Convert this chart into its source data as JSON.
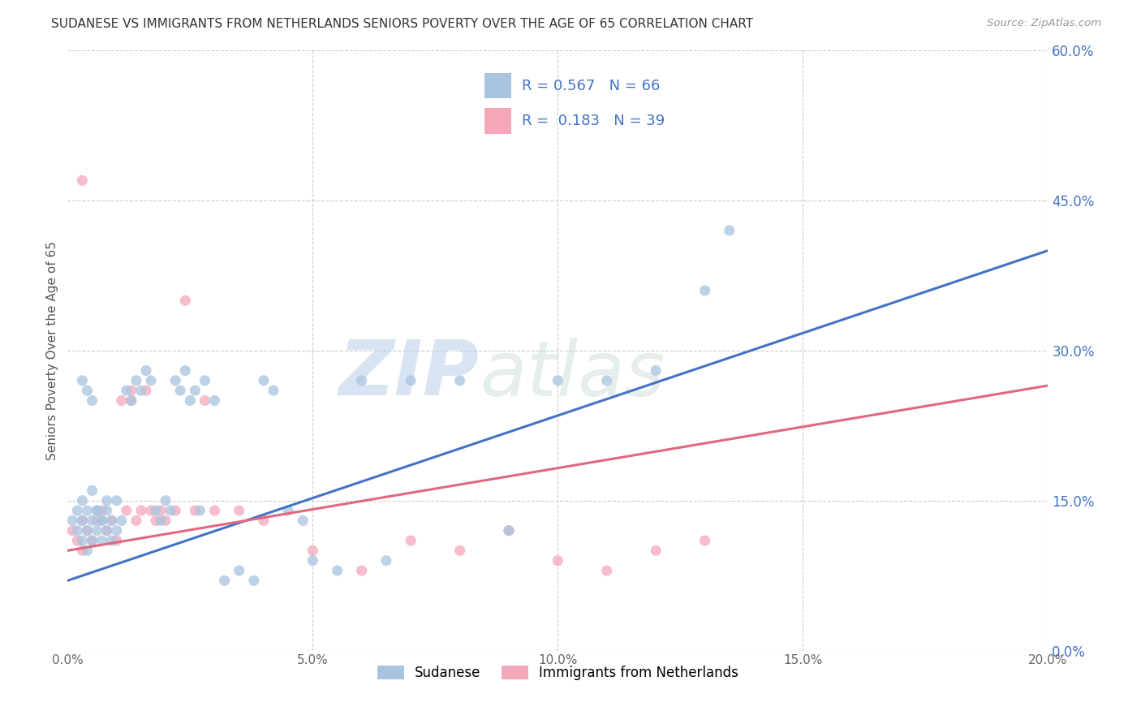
{
  "title": "SUDANESE VS IMMIGRANTS FROM NETHERLANDS SENIORS POVERTY OVER THE AGE OF 65 CORRELATION CHART",
  "source": "Source: ZipAtlas.com",
  "ylabel": "Seniors Poverty Over the Age of 65",
  "xlabel_ticks": [
    "0.0%",
    "5.0%",
    "10.0%",
    "15.0%",
    "20.0%"
  ],
  "ylabel_ticks_right": [
    "60.0%",
    "45.0%",
    "30.0%",
    "15.0%",
    "0.0%"
  ],
  "ylabel_ticks_right_vals": [
    0.6,
    0.45,
    0.3,
    0.15,
    0.0
  ],
  "xlim": [
    0.0,
    0.2
  ],
  "ylim": [
    0.0,
    0.6
  ],
  "legend1_label": "Sudanese",
  "legend2_label": "Immigrants from Netherlands",
  "R1": "0.567",
  "N1": "66",
  "R2": "0.183",
  "N2": "39",
  "color1": "#a8c4e0",
  "color2": "#f4a7b9",
  "line_color1": "#4472c4",
  "line_color2": "#e06880",
  "blue_line_y0": 0.07,
  "blue_line_y1": 0.4,
  "pink_line_y0": 0.1,
  "pink_line_y1": 0.265,
  "sudanese_x": [
    0.001,
    0.002,
    0.002,
    0.003,
    0.003,
    0.003,
    0.004,
    0.004,
    0.004,
    0.005,
    0.005,
    0.005,
    0.006,
    0.006,
    0.007,
    0.007,
    0.008,
    0.008,
    0.009,
    0.009,
    0.01,
    0.01,
    0.011,
    0.012,
    0.013,
    0.014,
    0.015,
    0.016,
    0.017,
    0.018,
    0.019,
    0.02,
    0.021,
    0.022,
    0.023,
    0.024,
    0.025,
    0.026,
    0.027,
    0.028,
    0.03,
    0.032,
    0.035,
    0.038,
    0.04,
    0.042,
    0.045,
    0.048,
    0.05,
    0.055,
    0.06,
    0.065,
    0.07,
    0.08,
    0.09,
    0.1,
    0.11,
    0.12,
    0.13,
    0.003,
    0.004,
    0.005,
    0.006,
    0.007,
    0.008,
    0.135
  ],
  "sudanese_y": [
    0.13,
    0.12,
    0.14,
    0.11,
    0.13,
    0.15,
    0.1,
    0.12,
    0.14,
    0.11,
    0.13,
    0.16,
    0.12,
    0.14,
    0.11,
    0.13,
    0.12,
    0.14,
    0.11,
    0.13,
    0.15,
    0.12,
    0.13,
    0.26,
    0.25,
    0.27,
    0.26,
    0.28,
    0.27,
    0.14,
    0.13,
    0.15,
    0.14,
    0.27,
    0.26,
    0.28,
    0.25,
    0.26,
    0.14,
    0.27,
    0.25,
    0.07,
    0.08,
    0.07,
    0.27,
    0.26,
    0.14,
    0.13,
    0.09,
    0.08,
    0.27,
    0.09,
    0.27,
    0.27,
    0.12,
    0.27,
    0.27,
    0.28,
    0.36,
    0.27,
    0.26,
    0.25,
    0.14,
    0.13,
    0.15,
    0.42
  ],
  "netherlands_x": [
    0.001,
    0.002,
    0.003,
    0.003,
    0.004,
    0.005,
    0.006,
    0.007,
    0.008,
    0.009,
    0.01,
    0.011,
    0.012,
    0.013,
    0.014,
    0.015,
    0.016,
    0.017,
    0.018,
    0.019,
    0.02,
    0.022,
    0.024,
    0.026,
    0.028,
    0.03,
    0.035,
    0.04,
    0.05,
    0.06,
    0.07,
    0.08,
    0.09,
    0.1,
    0.11,
    0.12,
    0.003,
    0.013,
    0.13
  ],
  "netherlands_y": [
    0.12,
    0.11,
    0.13,
    0.1,
    0.12,
    0.11,
    0.13,
    0.14,
    0.12,
    0.13,
    0.11,
    0.25,
    0.14,
    0.26,
    0.13,
    0.14,
    0.26,
    0.14,
    0.13,
    0.14,
    0.13,
    0.14,
    0.35,
    0.14,
    0.25,
    0.14,
    0.14,
    0.13,
    0.1,
    0.08,
    0.11,
    0.1,
    0.12,
    0.09,
    0.08,
    0.1,
    0.47,
    0.25,
    0.11
  ]
}
